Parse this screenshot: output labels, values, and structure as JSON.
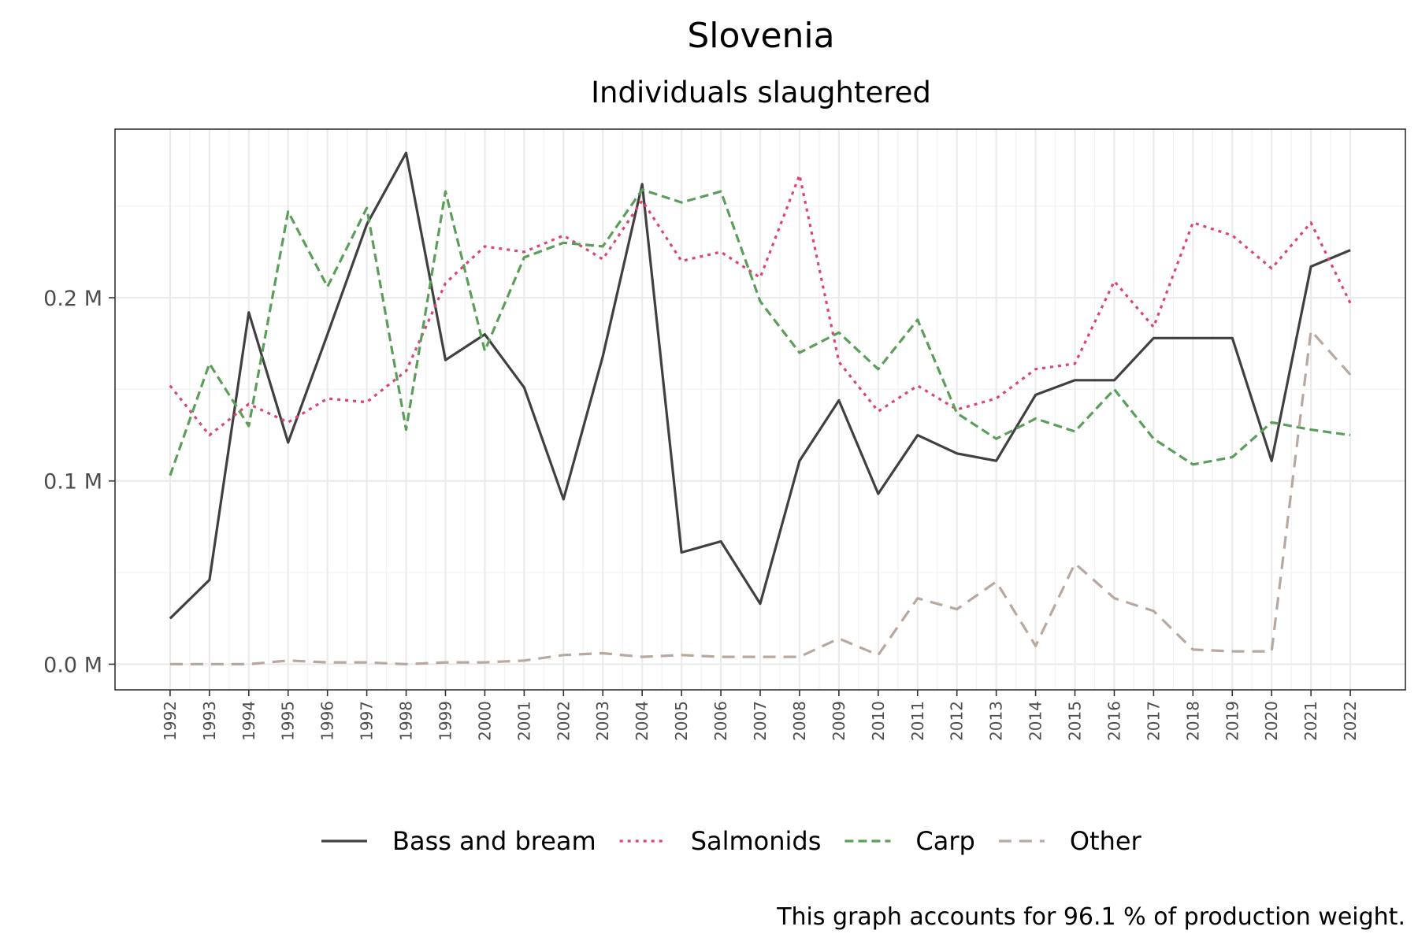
{
  "chart_data": {
    "type": "line",
    "title": "Slovenia",
    "subtitle": "Individuals slaughtered",
    "caption": "This graph accounts for 96.1 % of production weight.",
    "xlabel": "",
    "ylabel": "",
    "x": [
      1992,
      1993,
      1994,
      1995,
      1996,
      1997,
      1998,
      1999,
      2000,
      2001,
      2002,
      2003,
      2004,
      2005,
      2006,
      2007,
      2008,
      2009,
      2010,
      2011,
      2012,
      2013,
      2014,
      2015,
      2016,
      2017,
      2018,
      2019,
      2020,
      2021,
      2022
    ],
    "x_tick_labels": [
      "1992",
      "1993",
      "1994",
      "1995",
      "1996",
      "1997",
      "1998",
      "1999",
      "2000",
      "2001",
      "2002",
      "2003",
      "2004",
      "2005",
      "2006",
      "2007",
      "2008",
      "2009",
      "2010",
      "2011",
      "2012",
      "2013",
      "2014",
      "2015",
      "2016",
      "2017",
      "2018",
      "2019",
      "2020",
      "2021",
      "2022"
    ],
    "ylim": [
      -0.014,
      0.292
    ],
    "y_ticks": [
      0,
      0.1,
      0.2
    ],
    "y_tick_labels": [
      "0.0 M",
      "0.1 M",
      "0.2 M"
    ],
    "grid": true,
    "legend_position": "bottom",
    "series": [
      {
        "name": "Bass and bream",
        "color": "#404040",
        "dash": "solid",
        "values": [
          0.025,
          0.046,
          0.192,
          0.121,
          0.18,
          0.24,
          0.279,
          0.166,
          0.18,
          0.151,
          0.09,
          0.168,
          0.262,
          0.061,
          0.067,
          0.033,
          0.111,
          0.144,
          0.093,
          0.125,
          0.115,
          0.111,
          0.147,
          0.155,
          0.155,
          0.178,
          0.178,
          0.178,
          0.111,
          0.217,
          0.226
        ]
      },
      {
        "name": "Salmonids",
        "color": "#dd4470",
        "dash": "dotted",
        "values": [
          0.152,
          0.125,
          0.142,
          0.132,
          0.145,
          0.143,
          0.16,
          0.208,
          0.228,
          0.225,
          0.234,
          0.221,
          0.253,
          0.22,
          0.225,
          0.211,
          0.267,
          0.165,
          0.138,
          0.152,
          0.139,
          0.145,
          0.161,
          0.164,
          0.209,
          0.184,
          0.241,
          0.234,
          0.216,
          0.241,
          0.197
        ]
      },
      {
        "name": "Carp",
        "color": "#5a9e5a",
        "dash": "dashed",
        "values": [
          0.103,
          0.164,
          0.13,
          0.247,
          0.206,
          0.249,
          0.128,
          0.258,
          0.171,
          0.222,
          0.23,
          0.228,
          0.259,
          0.252,
          0.258,
          0.198,
          0.17,
          0.181,
          0.161,
          0.188,
          0.137,
          0.123,
          0.134,
          0.127,
          0.15,
          0.123,
          0.109,
          0.113,
          0.132,
          0.128,
          0.125
        ]
      },
      {
        "name": "Other",
        "color": "#b8a89f",
        "dash": "longdash",
        "values": [
          0.0,
          0.0,
          0.0,
          0.002,
          0.001,
          0.001,
          0.0,
          0.001,
          0.001,
          0.002,
          0.005,
          0.006,
          0.004,
          0.005,
          0.004,
          0.004,
          0.004,
          0.014,
          0.005,
          0.036,
          0.03,
          0.045,
          0.01,
          0.055,
          0.036,
          0.029,
          0.008,
          0.007,
          0.007,
          0.182,
          0.158
        ]
      }
    ]
  }
}
